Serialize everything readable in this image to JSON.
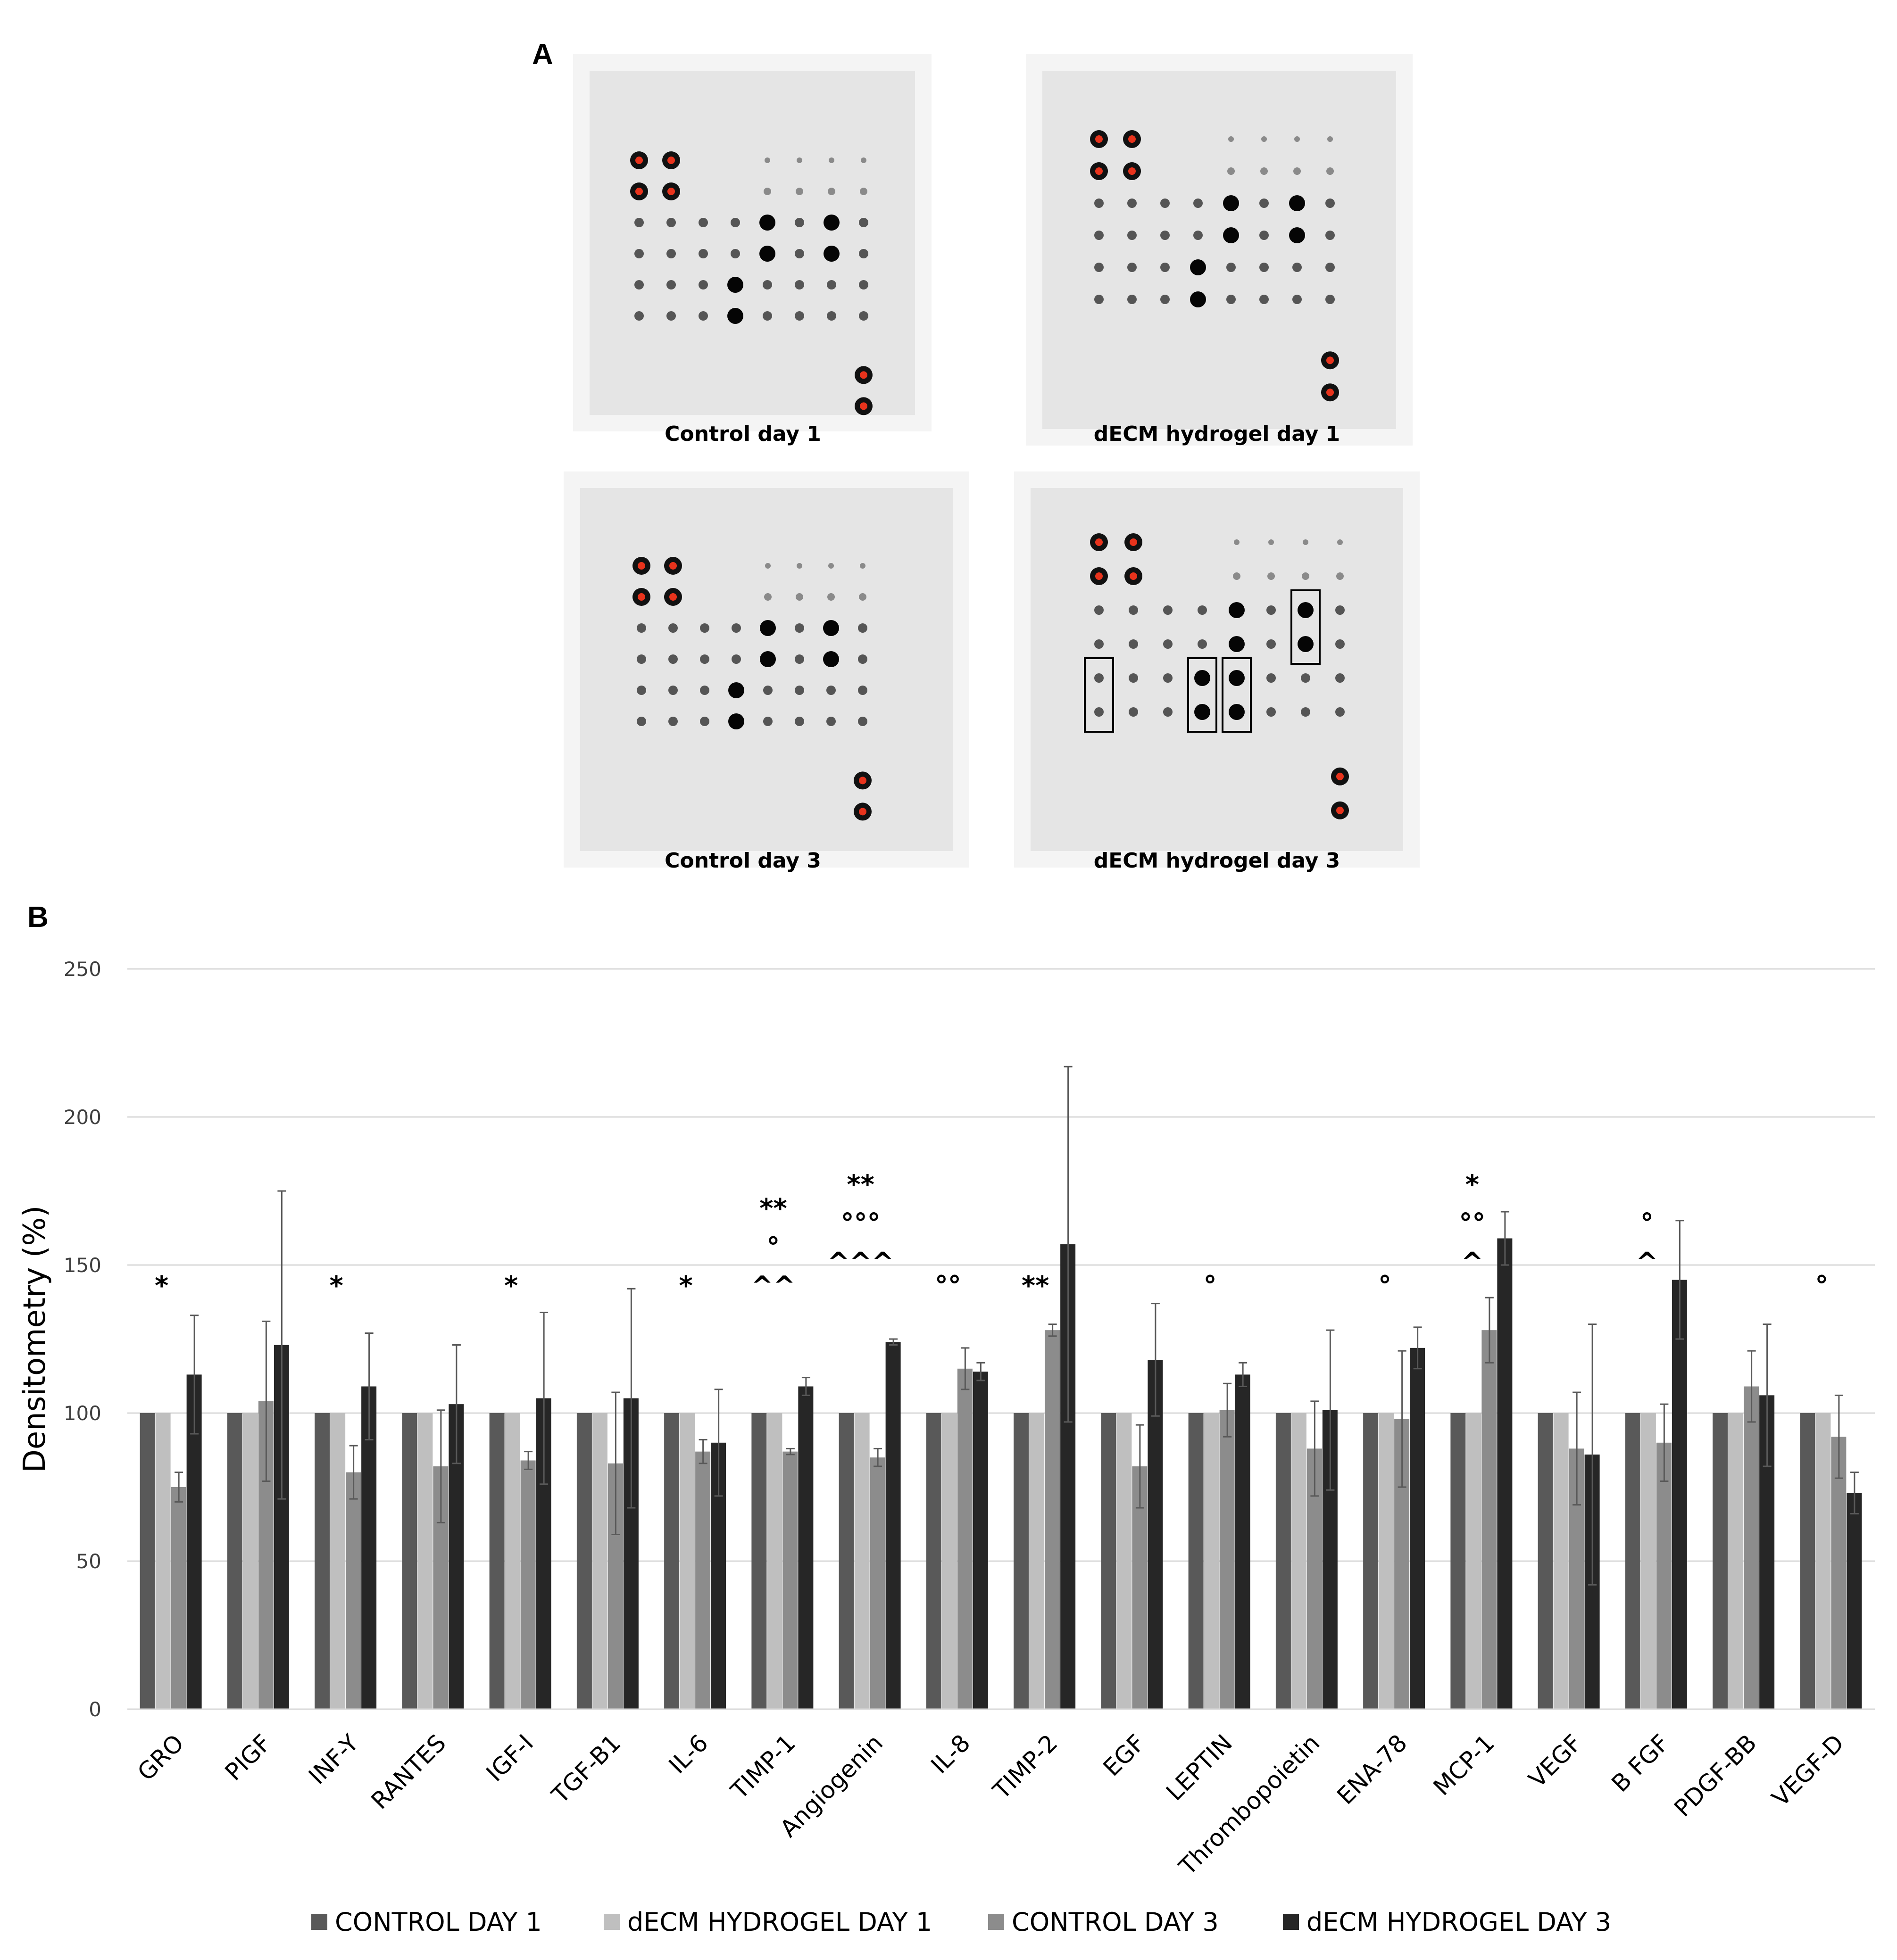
{
  "figure": {
    "panel_a_label": "A",
    "panel_b_label": "B",
    "blots": [
      {
        "caption": "Control day 1"
      },
      {
        "caption": "dECM hydrogel day 1"
      },
      {
        "caption": "Control day 3"
      },
      {
        "caption": "dECM hydrogel day 3"
      }
    ]
  },
  "colors": {
    "control_day1": "#595959",
    "decm_day1": "#bfbfbf",
    "control_day3": "#8c8c8c",
    "decm_day3": "#262626",
    "gridline": "#d9d9d9",
    "error_bar": "#595959",
    "reference_spot": "#e8331c"
  },
  "chart_data": {
    "type": "bar",
    "title": "",
    "xlabel": "",
    "ylabel": "Densitometry (%)",
    "ylim": [
      0,
      250
    ],
    "yticks": [
      "0",
      "50",
      "100",
      "150",
      "200",
      "250"
    ],
    "grid": true,
    "legend_position": "bottom",
    "categories": [
      "GRO",
      "PIGF",
      "INF-Y",
      "RANTES",
      "IGF-I",
      "TGF-B1",
      "IL-6",
      "TIMP-1",
      "Angiogenin",
      "IL-8",
      "TIMP-2",
      "EGF",
      "LEPTIN",
      "Thrombopoietin",
      "ENA-78",
      "MCP-1",
      "VEGF",
      "B FGF",
      "PDGF-BB",
      "VEGF-D"
    ],
    "series": [
      {
        "name": "CONTROL DAY 1",
        "values": [
          100,
          100,
          100,
          100,
          100,
          100,
          100,
          100,
          100,
          100,
          100,
          100,
          100,
          100,
          100,
          100,
          100,
          100,
          100,
          100
        ],
        "errors": [
          0,
          0,
          0,
          0,
          0,
          0,
          0,
          0,
          0,
          0,
          0,
          0,
          0,
          0,
          0,
          0,
          0,
          0,
          0,
          0
        ]
      },
      {
        "name": "dECM HYDROGEL DAY 1",
        "values": [
          100,
          100,
          100,
          100,
          100,
          100,
          100,
          100,
          100,
          100,
          100,
          100,
          100,
          100,
          100,
          100,
          100,
          100,
          100,
          100
        ],
        "errors": [
          0,
          0,
          0,
          0,
          0,
          0,
          0,
          0,
          0,
          0,
          0,
          0,
          0,
          0,
          0,
          0,
          0,
          0,
          0,
          0
        ]
      },
      {
        "name": "CONTROL DAY 3",
        "values": [
          75,
          104,
          80,
          82,
          84,
          83,
          87,
          87,
          85,
          115,
          128,
          82,
          101,
          88,
          98,
          128,
          88,
          90,
          109,
          92
        ],
        "errors": [
          5,
          27,
          9,
          19,
          3,
          24,
          4,
          1,
          3,
          7,
          2,
          14,
          9,
          16,
          23,
          11,
          19,
          13,
          12,
          14
        ]
      },
      {
        "name": "dECM HYDROGEL DAY 3",
        "values": [
          113,
          123,
          109,
          103,
          105,
          105,
          90,
          109,
          124,
          114,
          157,
          118,
          113,
          101,
          122,
          159,
          86,
          145,
          106,
          73
        ],
        "errors": [
          20,
          52,
          18,
          20,
          29,
          37,
          18,
          3,
          1,
          3,
          60,
          19,
          4,
          27,
          7,
          9,
          44,
          20,
          24,
          7
        ]
      }
    ],
    "annotations": [
      {
        "category": "GRO",
        "lines": [
          "*"
        ]
      },
      {
        "category": "INF-Y",
        "lines": [
          "*"
        ]
      },
      {
        "category": "IGF-I",
        "lines": [
          "*"
        ]
      },
      {
        "category": "IL-6",
        "lines": [
          "*"
        ]
      },
      {
        "category": "TIMP-1",
        "lines": [
          "**",
          "°",
          "^^"
        ]
      },
      {
        "category": "Angiogenin",
        "lines": [
          "**",
          "°°°",
          "^^^"
        ]
      },
      {
        "category": "IL-8",
        "lines": [
          "°°"
        ]
      },
      {
        "category": "TIMP-2",
        "lines": [
          "**"
        ]
      },
      {
        "category": "LEPTIN",
        "lines": [
          "°"
        ]
      },
      {
        "category": "ENA-78",
        "lines": [
          "°"
        ]
      },
      {
        "category": "MCP-1",
        "lines": [
          "*",
          "°°",
          "^"
        ]
      },
      {
        "category": "B FGF",
        "lines": [
          "°",
          "^"
        ]
      },
      {
        "category": "VEGF-D",
        "lines": [
          "°"
        ]
      }
    ]
  }
}
